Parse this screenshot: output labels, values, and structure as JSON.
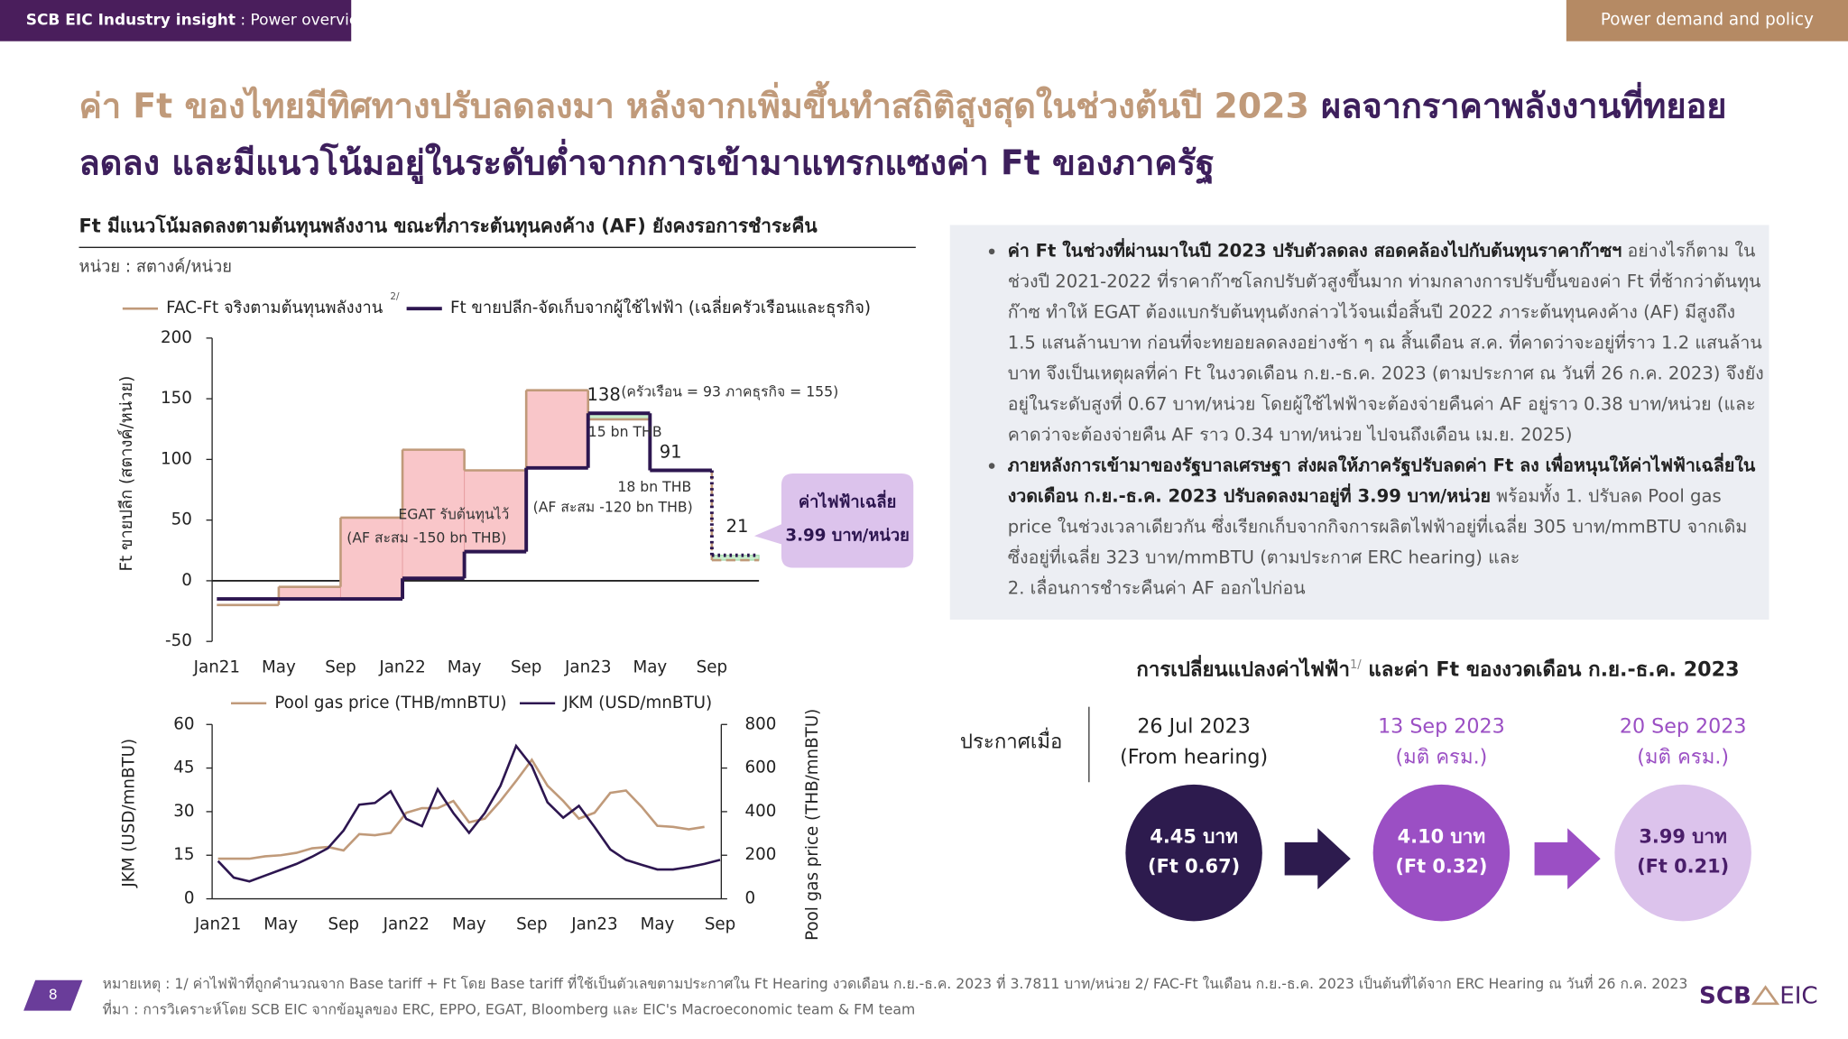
{
  "header": {
    "left_bold": "SCB EIC Industry insight",
    "left_rest": " : Power overview",
    "right": "Power demand and policy"
  },
  "title": {
    "part1": "ค่า Ft ของไทยมีทิศทางปรับลดลงมา หลังจากเพิ่มขึ้นทำสถิติสูงสุดในช่วงต้นปี 2023 ",
    "part2": "ผลจากราคาพลังงานที่ทยอยลดลง และมีแนวโน้มอยู่ในระดับต่ำจากการเข้ามาแทรกแซงค่า Ft ของภาครัฐ"
  },
  "chart_data": [
    {
      "type": "step",
      "title": "Ft มีแนวโน้มลดลงตามต้นทุนพลังงาน ขณะที่ภาระต้นทุนคงค้าง (AF) ยังคงรอการชำระคืน",
      "unit": "หน่วย : สตางค์/หน่วย",
      "y_label": "Ft ขายปลีก (สตางค์/หน่วย)",
      "categories": [
        "Jan21",
        "May",
        "Sep",
        "Jan22",
        "May",
        "Sep",
        "Jan23",
        "May",
        "Sep"
      ],
      "series": [
        {
          "name": "FAC-Ft จริงตามต้นทุนพลังงาน",
          "name_note": "2/",
          "color": "#c09a7a",
          "values": [
            -20,
            -5,
            52,
            108,
            91,
            157,
            133,
            91,
            17
          ],
          "dashed": [
            8
          ]
        },
        {
          "name": "Ft ขายปลีก-จัดเก็บจากผู้ใช้ไฟฟ้า (เฉลี่ยครัวเรือนและธุรกิจ)",
          "color": "#2d1650",
          "values": [
            -15,
            -15,
            -15,
            2,
            24,
            93,
            138,
            91,
            21
          ],
          "dashed": [
            8
          ]
        }
      ],
      "fill_colors": {
        "above": "#f9c6c9",
        "below": "#c8efcc"
      },
      "annotations": [
        "(ครัวเรือน = 93 ภาคธุรกิจ = 155)",
        "15 bn THB",
        "18 bn THB",
        "EGAT รับต้นทุนไว้",
        "(AF สะสม -150 bn THB)",
        "(AF สะสม -120 bn THB)"
      ],
      "callout": [
        "ค่าไฟฟ้าเฉลี่ย",
        "3.99 บาท/หน่วย"
      ],
      "ylim": [
        -50,
        200
      ],
      "yticks": [
        -50,
        0,
        50,
        100,
        150,
        200
      ]
    },
    {
      "type": "line",
      "y_label": "JKM (USD/mnBTU)",
      "y2_label": "Pool gas price (THB/mnBTU)",
      "categories": [
        "Jan21",
        null,
        null,
        null,
        "May",
        null,
        null,
        null,
        "Sep",
        null,
        null,
        null,
        "Jan22",
        null,
        null,
        null,
        "May",
        null,
        null,
        null,
        "Sep",
        null,
        null,
        null,
        "Jan23",
        null,
        null,
        null,
        "May",
        null,
        null,
        null,
        "Sep"
      ],
      "series": [
        {
          "name": "Pool gas price (THB/mnBTU)",
          "color": "#c09a7a",
          "axis": "y2",
          "values": [
            184,
            184,
            184,
            195,
            200,
            211,
            232,
            238,
            222,
            297,
            292,
            303,
            395,
            416,
            416,
            449,
            351,
            368,
            449,
            541,
            638,
            519,
            449,
            368,
            395,
            486,
            497,
            422,
            335,
            330,
            319,
            330,
            null
          ]
        },
        {
          "name": "JKM (USD/mnBTU)",
          "color": "#2d1650",
          "values": [
            13,
            7.3,
            6,
            8,
            10,
            12,
            14.5,
            17.4,
            23.5,
            32.4,
            33,
            37,
            27.5,
            25,
            37.7,
            29.5,
            22.7,
            29.5,
            38.9,
            52.6,
            45.7,
            33.2,
            27.9,
            32,
            24.7,
            17,
            13.4,
            11.7,
            10.1,
            10.1,
            10.9,
            12,
            13.4
          ]
        }
      ],
      "ylim": [
        0,
        60
      ],
      "yticks": [
        0,
        15,
        30,
        45,
        60
      ],
      "y2lim": [
        0,
        800
      ],
      "y2ticks": [
        0,
        200,
        400,
        600,
        800
      ]
    }
  ],
  "bullets": [
    {
      "bold": "ค่า Ft ในช่วงที่ผ่านมาในปี 2023 ปรับตัวลดลง สอดคล้องไปกับต้นทุนราคาก๊าซฯ",
      "text": " อย่างไรก็ตาม ในช่วงปี 2021-2022 ที่ราคาก๊าซโลกปรับตัวสูงขึ้นมาก ท่ามกลางการปรับขึ้นของค่า Ft ที่ช้ากว่าต้นทุนก๊าซ ทำให้ EGAT ต้องแบกรับต้นทุนดังกล่าวไว้จนเมื่อสิ้นปี 2022 ภาระต้นทุนคงค้าง (AF) มีสูงถึง 1.5 แสนล้านบาท ก่อนที่จะทยอยลดลงอย่างช้า ๆ ณ สิ้นเดือน ส.ค. ที่คาดว่าจะอยู่ที่ราว 1.2 แสนล้านบาท จึงเป็นเหตุผลที่ค่า Ft ในงวดเดือน ก.ย.-ธ.ค. 2023 (ตามประกาศ ณ วันที่ 26 ก.ค. 2023) จึงยังอยู่ในระดับสูงที่ 0.67 บาท/หน่วย โดยผู้ใช้ไฟฟ้าจะต้องจ่ายคืนค่า AF อยู่ราว 0.38 บาท/หน่วย (และคาดว่าจะต้องจ่ายคืน AF ราว 0.34 บาท/หน่วย ไปจนถึงเดือน เม.ย. 2025)"
    },
    {
      "bold": "ภายหลังการเข้ามาของรัฐบาลเศรษฐา ส่งผลให้ภาครัฐปรับลดค่า Ft ลง เพื่อหนุนให้ค่าไฟฟ้าเฉลี่ยในงวดเดือน ก.ย.-ธ.ค. 2023 ปรับลดลงมาอยู่ที่ 3.99 บาท/หน่วย",
      "text": " พร้อมทั้ง 1. ปรับลด Pool gas price ในช่วงเวลาเดียวกัน ซึ่งเรียกเก็บจากกิจการผลิตไฟฟ้าอยู่ที่เฉลี่ย 305 บาท/mmBTU จากเดิมซึ่งอยู่ที่เฉลี่ย 323 บาท/mmBTU (ตามประกาศ ERC hearing) และ",
      "text2": "2. เลื่อนการชำระคืนค่า AF ออกไปก่อน"
    }
  ],
  "flow": {
    "title": "การเปลี่ยนแปลงค่าไฟฟ้า",
    "title_note": "1/",
    "title_rest": " และค่า Ft ของงวดเดือน ก.ย.-ธ.ค. 2023",
    "label": "ประกาศเมื่อ",
    "steps": [
      {
        "date": "26 Jul 2023",
        "sub": "(From hearing)",
        "price": "4.45 บาท",
        "ft": "(Ft 0.67)"
      },
      {
        "date": "13 Sep 2023",
        "sub": "(มติ ครม.)",
        "price": "4.10 บาท",
        "ft": "(Ft 0.32)"
      },
      {
        "date": "20 Sep 2023",
        "sub": "(มติ ครม.)",
        "price": "3.99 บาท",
        "ft": "(Ft 0.21)"
      }
    ]
  },
  "footer": {
    "page": "8",
    "note": "หมายเหตุ : 1/ ค่าไฟฟ้าที่ถูกคำนวณจาก Base tariff + Ft โดย Base tariff ที่ใช้เป็นตัวเลขตามประกาศใน Ft Hearing งวดเดือน ก.ย.-ธ.ค. 2023 ที่ 3.7811 บาท/หน่วย  2/ FAC-Ft ในเดือน ก.ย.-ธ.ค. 2023 เป็นต้นที่ได้จาก ERC Hearing ณ วันที่ 26 ก.ค. 2023",
    "source": "ที่มา : การวิเคราะห์โดย SCB EIC จากข้อมูลของ ERC, EPPO, EGAT, Bloomberg และ EIC's Macroeconomic team & FM team",
    "logo_left": "SCB",
    "logo_right": "EIC"
  }
}
